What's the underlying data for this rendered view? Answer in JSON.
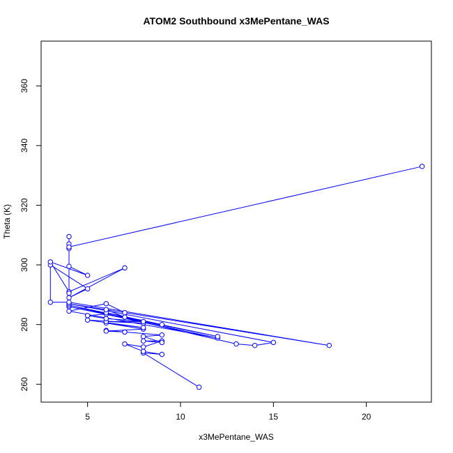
{
  "chart_data": {
    "type": "line",
    "title": "ATOM2 Southbound x3MePentane_WAS",
    "xlabel": "x3MePentane_WAS",
    "ylabel": "Theta (K)",
    "xlim": [
      2.5,
      23.5
    ],
    "ylim": [
      254,
      375
    ],
    "xticks": [
      5,
      10,
      15,
      20
    ],
    "yticks": [
      260,
      280,
      300,
      320,
      340,
      360
    ],
    "grid": false,
    "legend": "none",
    "series_color": "#0000ff",
    "marker": "open-circle",
    "points": [
      [
        11,
        259
      ],
      [
        8,
        270.5
      ],
      [
        9,
        270
      ],
      [
        8,
        271
      ],
      [
        7,
        273.5
      ],
      [
        8,
        272.5
      ],
      [
        9,
        274.5
      ],
      [
        8,
        274.5
      ],
      [
        9,
        274
      ],
      [
        8,
        276
      ],
      [
        9,
        276.5
      ],
      [
        7,
        277.5
      ],
      [
        6,
        278
      ],
      [
        7,
        277.5
      ],
      [
        6,
        277.8
      ],
      [
        8,
        278.5
      ],
      [
        6,
        280.5
      ],
      [
        8,
        279
      ],
      [
        5,
        281.5
      ],
      [
        8,
        280.5
      ],
      [
        6,
        281
      ],
      [
        8,
        281
      ],
      [
        6,
        282
      ],
      [
        5,
        283
      ],
      [
        6,
        283.5
      ],
      [
        9,
        280
      ],
      [
        6,
        284
      ],
      [
        7,
        282.5
      ],
      [
        6,
        285
      ],
      [
        7,
        284
      ],
      [
        6,
        287
      ],
      [
        4,
        284.5
      ],
      [
        12,
        275.5
      ],
      [
        4,
        286
      ],
      [
        12,
        276
      ],
      [
        4,
        286.5
      ],
      [
        13,
        273.5
      ],
      [
        14,
        273
      ],
      [
        15,
        274
      ],
      [
        4,
        287
      ],
      [
        18,
        273
      ],
      [
        4,
        287.5
      ],
      [
        3,
        287.5
      ],
      [
        3,
        300
      ],
      [
        5,
        292
      ],
      [
        4,
        289
      ],
      [
        7,
        299
      ],
      [
        4,
        291
      ],
      [
        3,
        301
      ],
      [
        5,
        296.5
      ],
      [
        4,
        299.5
      ],
      [
        4,
        290.5
      ],
      [
        4,
        305.5
      ],
      [
        4,
        307
      ],
      [
        4,
        309.5
      ],
      [
        4,
        306
      ],
      [
        23,
        333
      ]
    ]
  }
}
